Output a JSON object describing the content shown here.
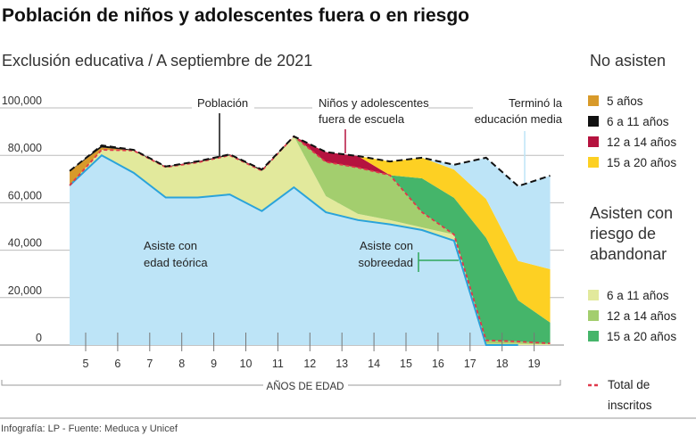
{
  "title": "Población de niños y adolescentes fuera o en riesgo",
  "subtitle": "Exclusión educativa / A septiembre de 2021",
  "footer": "Infografía: LP - Fuente: Meduca y Unicef",
  "annotations": {
    "poblacion": "Población",
    "fuera_1": "Niños y adolescentes",
    "fuera_2": "fuera  de escuela",
    "termino_1": "Terminó la",
    "termino_2": "educación media",
    "teorica_1": "Asiste con",
    "teorica_2": "edad teórica",
    "sobreedad_1": "Asiste con",
    "sobreedad_2": "sobreedad"
  },
  "legend": {
    "no_asisten_title": "No asisten",
    "no_asisten": [
      {
        "label": "5 años",
        "color": "#D89A2A"
      },
      {
        "label": "6 a 11 años",
        "color": "#111111"
      },
      {
        "label": "12 a 14 años",
        "color": "#B5133F"
      },
      {
        "label": "15 a 20 años",
        "color": "#FDD023"
      }
    ],
    "riesgo_title_1": "Asisten con",
    "riesgo_title_2": "riesgo de",
    "riesgo_title_3": "abandonar",
    "riesgo": [
      {
        "label": "6 a 11 años",
        "color": "#E2E99C"
      },
      {
        "label": "12 a 14 años",
        "color": "#A3CE6E"
      },
      {
        "label": "15 a 20 años",
        "color": "#45B56A"
      }
    ],
    "inscritos_1": "Total de",
    "inscritos_2": "inscritos",
    "inscritos_color": "#E0384A"
  },
  "chart_data": {
    "type": "area",
    "stacked": true,
    "xlabel": "AÑOS DE EDAD",
    "x_ticks": [
      5,
      6,
      7,
      8,
      9,
      10,
      11,
      12,
      13,
      14,
      15,
      16,
      17,
      18,
      19
    ],
    "y_ticks": [
      "0",
      "20,000",
      "40,000",
      "60,000",
      "80,000",
      "100,000"
    ],
    "ylim": [
      0,
      100000
    ],
    "grid": true,
    "x": [
      4.5,
      5.5,
      6.5,
      7.5,
      8.5,
      9.5,
      10.5,
      11.5,
      12.5,
      13.5,
      14.5,
      15.5,
      16.5,
      17.5,
      18.5,
      19.5
    ],
    "stack": [
      {
        "key": "teorica",
        "name": "Asiste con edad teórica",
        "color": "#BDE4F7",
        "values": [
          67300,
          80000,
          72600,
          62200,
          62200,
          63500,
          56500,
          66500,
          56000,
          52700,
          50900,
          48500,
          44000,
          0,
          0,
          0
        ]
      },
      {
        "key": "riesgo_6_11",
        "name": "Asisten con riesgo de abandonar 6 a 11 años",
        "color": "#E2E99C",
        "values": [
          0,
          2300,
          9400,
          12800,
          14800,
          16500,
          17000,
          21500,
          6800,
          2600,
          1800,
          1100,
          2600,
          500,
          500,
          300
        ]
      },
      {
        "key": "riesgo_12_14",
        "name": "Asisten con riesgo de abandonar 12 a 14 años",
        "color": "#A3CE6E",
        "values": [
          0,
          0,
          0,
          0,
          0,
          0,
          0,
          0,
          14400,
          19500,
          18900,
          6400,
          0,
          1500,
          1000,
          400
        ]
      },
      {
        "key": "riesgo_15_20",
        "name": "Asisten con riesgo de abandonar 15 a 20 años",
        "color": "#45B56A",
        "values": [
          0,
          0,
          0,
          0,
          0,
          0,
          0,
          0,
          0,
          0,
          0,
          14300,
          15500,
          43200,
          17400,
          8800
        ]
      },
      {
        "key": "no_5",
        "name": "No asisten 5 años",
        "color": "#D89A2A",
        "values": [
          6100,
          1000,
          0,
          0,
          0,
          0,
          0,
          0,
          0,
          0,
          0,
          0,
          0,
          0,
          0,
          0
        ]
      },
      {
        "key": "no_6_11",
        "name": "No asisten 6 a 11 años",
        "color": "#111111",
        "values": [
          0,
          900,
          300,
          300,
          500,
          400,
          500,
          0,
          0,
          0,
          0,
          0,
          0,
          0,
          0,
          0
        ]
      },
      {
        "key": "no_12_14",
        "name": "No asisten 12 a 14 años",
        "color": "#B5133F",
        "values": [
          0,
          0,
          0,
          0,
          0,
          0,
          0,
          0,
          4200,
          4900,
          0,
          0,
          0,
          0,
          0,
          0
        ]
      },
      {
        "key": "no_15_20",
        "name": "No asisten 15 a 20 años",
        "color": "#FDD023",
        "values": [
          0,
          0,
          0,
          0,
          0,
          0,
          0,
          0,
          0,
          0,
          5800,
          8700,
          11900,
          16400,
          16600,
          22500
        ]
      },
      {
        "key": "termino",
        "name": "Terminó la educación media",
        "color": "#BDE4F7",
        "values": [
          0,
          0,
          0,
          0,
          0,
          0,
          0,
          0,
          0,
          0,
          0,
          0,
          2000,
          17400,
          31500,
          39400
        ]
      }
    ],
    "poblacion": [
      73400,
      84200,
      82300,
      75300,
      77500,
      80400,
      74000,
      88000,
      81400,
      79700,
      77400,
      79000,
      76000,
      79000,
      67000,
      71400
    ],
    "total_inscritos": [
      67300,
      82300,
      82000,
      75000,
      77000,
      80000,
      73500,
      88000,
      77200,
      74800,
      71600,
      56000,
      46600,
      2000,
      1500,
      700
    ],
    "colors": {
      "teorica_line": "#2AA3DA",
      "poblacion_line": "#111111",
      "inscritos_line": "#E0384A"
    }
  }
}
